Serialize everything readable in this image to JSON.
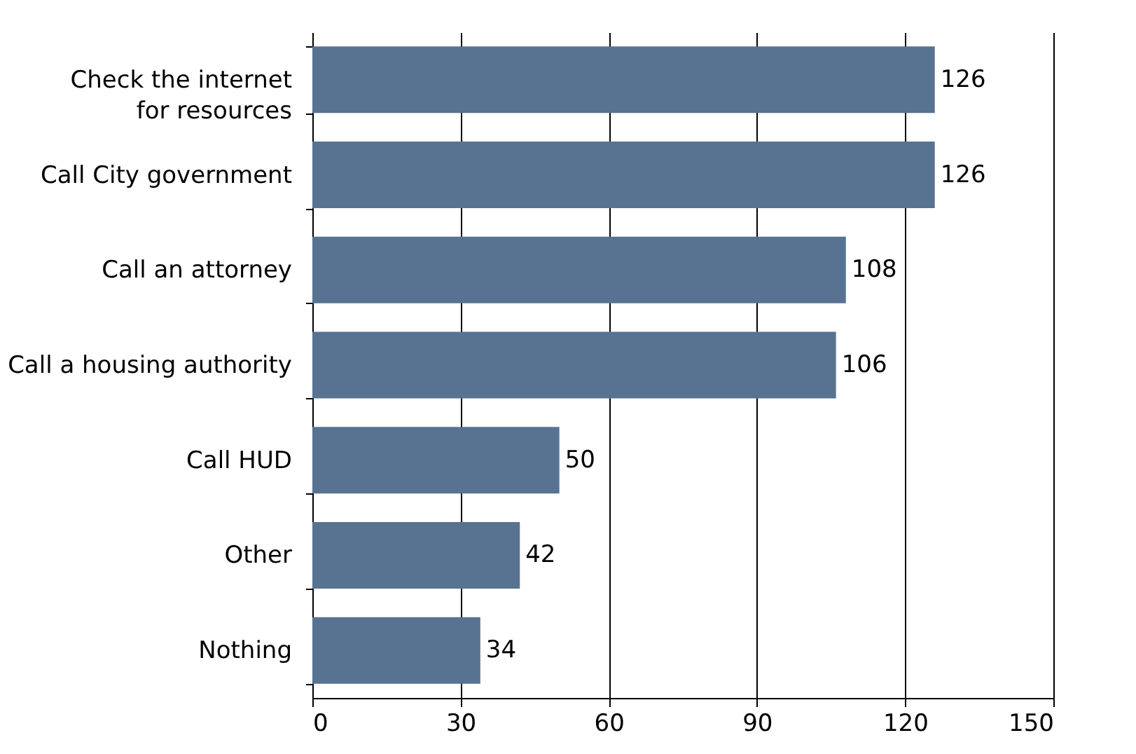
{
  "chart_data": {
    "type": "bar",
    "orientation": "horizontal",
    "categories": [
      "Check the internet for resources",
      "Call City government",
      "Call an attorney",
      "Call a housing authority",
      "Call HUD",
      "Other",
      "Nothing"
    ],
    "values": [
      126,
      126,
      108,
      106,
      50,
      42,
      34
    ],
    "color": "#587391",
    "xlim": [
      0,
      150
    ],
    "xticks": [
      0,
      30,
      60,
      90,
      120,
      150
    ],
    "grid": "x",
    "data_labels": true
  }
}
